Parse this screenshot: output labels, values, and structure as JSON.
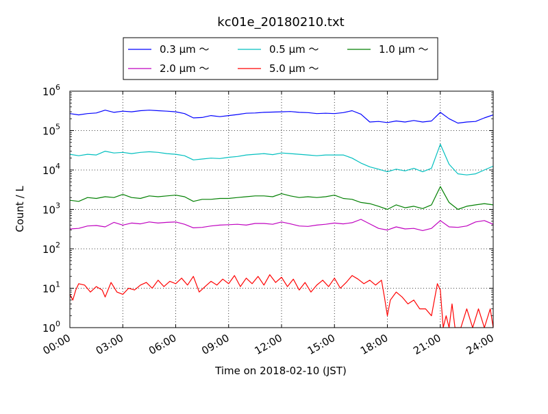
{
  "chart_data": {
    "type": "line",
    "title": "kc01e_20180210.txt",
    "xlabel": "Time on 2018-02-10 (JST)",
    "ylabel": "Count / L",
    "x_range": [
      "00:00",
      "24:00"
    ],
    "y_scale": "log",
    "ylim": [
      1,
      1000000
    ],
    "grid": true,
    "legend_position": "top-center",
    "x_ticks": [
      "00:00",
      "03:00",
      "06:00",
      "09:00",
      "12:00",
      "15:00",
      "18:00",
      "21:00",
      "24:00"
    ],
    "y_ticks": [
      {
        "value": 1,
        "base": "10",
        "exp": "0"
      },
      {
        "value": 10,
        "base": "10",
        "exp": "1"
      },
      {
        "value": 100,
        "base": "10",
        "exp": "2"
      },
      {
        "value": 1000,
        "base": "10",
        "exp": "3"
      },
      {
        "value": 10000,
        "base": "10",
        "exp": "4"
      },
      {
        "value": 100000,
        "base": "10",
        "exp": "5"
      },
      {
        "value": 1000000,
        "base": "10",
        "exp": "6"
      }
    ],
    "series": [
      {
        "name": "0.3 μm ～",
        "color": "#0000ff",
        "points": [
          [
            "00:00",
            270000
          ],
          [
            "00:30",
            250000
          ],
          [
            "01:00",
            270000
          ],
          [
            "01:30",
            280000
          ],
          [
            "02:00",
            330000
          ],
          [
            "02:30",
            290000
          ],
          [
            "03:00",
            310000
          ],
          [
            "03:30",
            300000
          ],
          [
            "04:00",
            320000
          ],
          [
            "04:30",
            330000
          ],
          [
            "05:00",
            320000
          ],
          [
            "05:30",
            310000
          ],
          [
            "06:00",
            300000
          ],
          [
            "06:30",
            270000
          ],
          [
            "07:00",
            210000
          ],
          [
            "07:30",
            215000
          ],
          [
            "08:00",
            240000
          ],
          [
            "08:30",
            225000
          ],
          [
            "09:00",
            240000
          ],
          [
            "09:30",
            255000
          ],
          [
            "10:00",
            275000
          ],
          [
            "10:30",
            280000
          ],
          [
            "11:00",
            290000
          ],
          [
            "11:30",
            295000
          ],
          [
            "12:00",
            300000
          ],
          [
            "12:30",
            305000
          ],
          [
            "13:00",
            290000
          ],
          [
            "13:30",
            285000
          ],
          [
            "14:00",
            270000
          ],
          [
            "14:30",
            275000
          ],
          [
            "15:00",
            270000
          ],
          [
            "15:30",
            285000
          ],
          [
            "16:00",
            320000
          ],
          [
            "16:30",
            260000
          ],
          [
            "17:00",
            165000
          ],
          [
            "17:30",
            170000
          ],
          [
            "18:00",
            160000
          ],
          [
            "18:30",
            175000
          ],
          [
            "19:00",
            165000
          ],
          [
            "19:30",
            180000
          ],
          [
            "20:00",
            165000
          ],
          [
            "20:30",
            175000
          ],
          [
            "21:00",
            290000
          ],
          [
            "21:30",
            200000
          ],
          [
            "22:00",
            155000
          ],
          [
            "22:30",
            165000
          ],
          [
            "23:00",
            170000
          ],
          [
            "23:30",
            210000
          ],
          [
            "24:00",
            250000
          ]
        ]
      },
      {
        "name": "0.5 μm ～",
        "color": "#00bfbf",
        "points": [
          [
            "00:00",
            25000
          ],
          [
            "00:30",
            23000
          ],
          [
            "01:00",
            25000
          ],
          [
            "01:30",
            24000
          ],
          [
            "02:00",
            30000
          ],
          [
            "02:30",
            27000
          ],
          [
            "03:00",
            28000
          ],
          [
            "03:30",
            26000
          ],
          [
            "04:00",
            28000
          ],
          [
            "04:30",
            29000
          ],
          [
            "05:00",
            28000
          ],
          [
            "05:30",
            26000
          ],
          [
            "06:00",
            25000
          ],
          [
            "06:30",
            23000
          ],
          [
            "07:00",
            18000
          ],
          [
            "07:30",
            19000
          ],
          [
            "08:00",
            20000
          ],
          [
            "08:30",
            19500
          ],
          [
            "09:00",
            21000
          ],
          [
            "09:30",
            22000
          ],
          [
            "10:00",
            24000
          ],
          [
            "10:30",
            25000
          ],
          [
            "11:00",
            26000
          ],
          [
            "11:30",
            24500
          ],
          [
            "12:00",
            27000
          ],
          [
            "12:30",
            26000
          ],
          [
            "13:00",
            25000
          ],
          [
            "13:30",
            24000
          ],
          [
            "14:00",
            23000
          ],
          [
            "14:30",
            24000
          ],
          [
            "15:00",
            24000
          ],
          [
            "15:30",
            24000
          ],
          [
            "16:00",
            20000
          ],
          [
            "16:30",
            15000
          ],
          [
            "17:00",
            12000
          ],
          [
            "17:30",
            10500
          ],
          [
            "18:00",
            9000
          ],
          [
            "18:30",
            10500
          ],
          [
            "19:00",
            9500
          ],
          [
            "19:30",
            11000
          ],
          [
            "20:00",
            9000
          ],
          [
            "20:30",
            11000
          ],
          [
            "21:00",
            45000
          ],
          [
            "21:30",
            14000
          ],
          [
            "22:00",
            8000
          ],
          [
            "22:30",
            7500
          ],
          [
            "23:00",
            8000
          ],
          [
            "23:30",
            10000
          ],
          [
            "24:00",
            12500
          ]
        ]
      },
      {
        "name": "1.0 μm ～",
        "color": "#007f00",
        "points": [
          [
            "00:00",
            1700
          ],
          [
            "00:30",
            1600
          ],
          [
            "01:00",
            2000
          ],
          [
            "01:30",
            1900
          ],
          [
            "02:00",
            2100
          ],
          [
            "02:30",
            2000
          ],
          [
            "03:00",
            2400
          ],
          [
            "03:30",
            2000
          ],
          [
            "04:00",
            1900
          ],
          [
            "04:30",
            2200
          ],
          [
            "05:00",
            2100
          ],
          [
            "05:30",
            2200
          ],
          [
            "06:00",
            2300
          ],
          [
            "06:30",
            2100
          ],
          [
            "07:00",
            1600
          ],
          [
            "07:30",
            1800
          ],
          [
            "08:00",
            1800
          ],
          [
            "08:30",
            1900
          ],
          [
            "09:00",
            1900
          ],
          [
            "09:30",
            2000
          ],
          [
            "10:00",
            2100
          ],
          [
            "10:30",
            2200
          ],
          [
            "11:00",
            2200
          ],
          [
            "11:30",
            2100
          ],
          [
            "12:00",
            2500
          ],
          [
            "12:30",
            2200
          ],
          [
            "13:00",
            2000
          ],
          [
            "13:30",
            2100
          ],
          [
            "14:00",
            2000
          ],
          [
            "14:30",
            2100
          ],
          [
            "15:00",
            2300
          ],
          [
            "15:30",
            1900
          ],
          [
            "16:00",
            1800
          ],
          [
            "16:30",
            1500
          ],
          [
            "17:00",
            1400
          ],
          [
            "17:30",
            1200
          ],
          [
            "18:00",
            1000
          ],
          [
            "18:30",
            1300
          ],
          [
            "19:00",
            1100
          ],
          [
            "19:30",
            1200
          ],
          [
            "20:00",
            1050
          ],
          [
            "20:30",
            1300
          ],
          [
            "21:00",
            3800
          ],
          [
            "21:30",
            1500
          ],
          [
            "22:00",
            1000
          ],
          [
            "22:30",
            1200
          ],
          [
            "23:00",
            1300
          ],
          [
            "23:30",
            1400
          ],
          [
            "24:00",
            1300
          ]
        ]
      },
      {
        "name": "2.0 μm ～",
        "color": "#bf00bf",
        "points": [
          [
            "00:00",
            320
          ],
          [
            "00:30",
            330
          ],
          [
            "01:00",
            380
          ],
          [
            "01:30",
            390
          ],
          [
            "02:00",
            360
          ],
          [
            "02:30",
            470
          ],
          [
            "03:00",
            400
          ],
          [
            "03:30",
            450
          ],
          [
            "04:00",
            430
          ],
          [
            "04:30",
            480
          ],
          [
            "05:00",
            450
          ],
          [
            "05:30",
            470
          ],
          [
            "06:00",
            480
          ],
          [
            "06:30",
            420
          ],
          [
            "07:00",
            340
          ],
          [
            "07:30",
            350
          ],
          [
            "08:00",
            380
          ],
          [
            "08:30",
            400
          ],
          [
            "09:00",
            410
          ],
          [
            "09:30",
            420
          ],
          [
            "10:00",
            400
          ],
          [
            "10:30",
            440
          ],
          [
            "11:00",
            440
          ],
          [
            "11:30",
            420
          ],
          [
            "12:00",
            480
          ],
          [
            "12:30",
            430
          ],
          [
            "13:00",
            380
          ],
          [
            "13:30",
            370
          ],
          [
            "14:00",
            400
          ],
          [
            "14:30",
            420
          ],
          [
            "15:00",
            450
          ],
          [
            "15:30",
            430
          ],
          [
            "16:00",
            460
          ],
          [
            "16:30",
            560
          ],
          [
            "17:00",
            430
          ],
          [
            "17:30",
            330
          ],
          [
            "18:00",
            300
          ],
          [
            "18:30",
            360
          ],
          [
            "19:00",
            320
          ],
          [
            "19:30",
            330
          ],
          [
            "20:00",
            290
          ],
          [
            "20:30",
            330
          ],
          [
            "21:00",
            520
          ],
          [
            "21:30",
            360
          ],
          [
            "22:00",
            350
          ],
          [
            "22:30",
            380
          ],
          [
            "23:00",
            480
          ],
          [
            "23:30",
            520
          ],
          [
            "24:00",
            420
          ]
        ]
      },
      {
        "name": "5.0 μm ～",
        "color": "#ff0000",
        "points": [
          [
            "00:00",
            7
          ],
          [
            "00:10",
            5
          ],
          [
            "00:20",
            9
          ],
          [
            "00:30",
            13
          ],
          [
            "00:50",
            12
          ],
          [
            "01:10",
            8
          ],
          [
            "01:30",
            11
          ],
          [
            "01:50",
            9
          ],
          [
            "02:00",
            6
          ],
          [
            "02:20",
            14
          ],
          [
            "02:40",
            8
          ],
          [
            "03:00",
            7
          ],
          [
            "03:20",
            10
          ],
          [
            "03:40",
            9
          ],
          [
            "04:00",
            12
          ],
          [
            "04:20",
            14
          ],
          [
            "04:40",
            10
          ],
          [
            "05:00",
            16
          ],
          [
            "05:20",
            11
          ],
          [
            "05:40",
            15
          ],
          [
            "06:00",
            13
          ],
          [
            "06:20",
            18
          ],
          [
            "06:40",
            12
          ],
          [
            "07:00",
            20
          ],
          [
            "07:20",
            8
          ],
          [
            "07:40",
            11
          ],
          [
            "08:00",
            15
          ],
          [
            "08:20",
            12
          ],
          [
            "08:40",
            17
          ],
          [
            "09:00",
            13
          ],
          [
            "09:20",
            21
          ],
          [
            "09:40",
            11
          ],
          [
            "10:00",
            18
          ],
          [
            "10:20",
            13
          ],
          [
            "10:40",
            20
          ],
          [
            "11:00",
            12
          ],
          [
            "11:20",
            22
          ],
          [
            "11:40",
            14
          ],
          [
            "12:00",
            19
          ],
          [
            "12:20",
            11
          ],
          [
            "12:40",
            17
          ],
          [
            "13:00",
            9
          ],
          [
            "13:20",
            14
          ],
          [
            "13:40",
            8
          ],
          [
            "14:00",
            12
          ],
          [
            "14:20",
            16
          ],
          [
            "14:40",
            11
          ],
          [
            "15:00",
            18
          ],
          [
            "15:20",
            10
          ],
          [
            "15:40",
            14
          ],
          [
            "16:00",
            21
          ],
          [
            "16:20",
            17
          ],
          [
            "16:40",
            13
          ],
          [
            "17:00",
            16
          ],
          [
            "17:20",
            12
          ],
          [
            "17:40",
            16
          ],
          [
            "17:50",
            6
          ],
          [
            "18:00",
            2
          ],
          [
            "18:10",
            5
          ],
          [
            "18:30",
            8
          ],
          [
            "18:50",
            6
          ],
          [
            "19:10",
            4
          ],
          [
            "19:30",
            5
          ],
          [
            "19:50",
            3
          ],
          [
            "20:10",
            3
          ],
          [
            "20:30",
            2
          ],
          [
            "20:50",
            13
          ],
          [
            "21:00",
            9
          ],
          [
            "21:10",
            1
          ],
          [
            "21:20",
            2
          ],
          [
            "21:30",
            1
          ],
          [
            "21:40",
            4
          ],
          [
            "21:50",
            1
          ],
          [
            "22:10",
            1
          ],
          [
            "22:30",
            3
          ],
          [
            "22:50",
            1
          ],
          [
            "23:10",
            3
          ],
          [
            "23:30",
            1
          ],
          [
            "23:50",
            3
          ],
          [
            "24:00",
            1
          ]
        ]
      }
    ]
  }
}
